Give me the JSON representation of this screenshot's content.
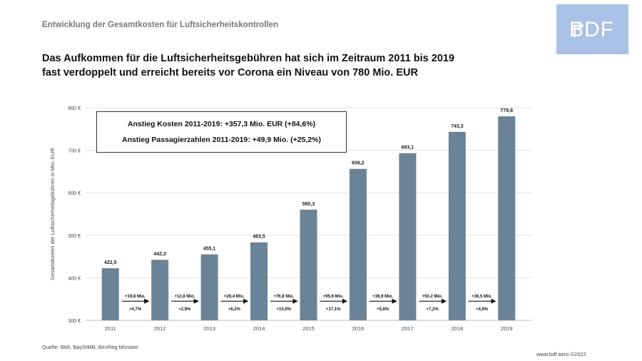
{
  "header": {
    "subtitle": "Entwicklung der Gesamtkosten für Luftsicherheitskontrollen",
    "headline_line1": "Das Aufkommen für die Luftsicherheitsgebühren hat sich im Zeitraum 2011 bis 2019",
    "headline_line2": "fast verdoppelt und erreicht bereits vor Corona ein Niveau von 780 Mio. EUR",
    "logo_text": "BDF",
    "logo_arrow": "↱"
  },
  "infobox": {
    "line1": "Anstieg Kosten 2011-2019: +357,3 Mio. EUR (+84,6%)",
    "line2": "Anstieg Passagierzahlen 2011-2019: +49,9 Mio. (+25,2%)"
  },
  "chart_data": {
    "type": "bar",
    "categories": [
      "2011",
      "2012",
      "2013",
      "2014",
      "2015",
      "2016",
      "2017",
      "2018",
      "2019"
    ],
    "values": [
      422.5,
      442.3,
      455.1,
      483.5,
      560.3,
      656.2,
      693.1,
      743.3,
      779.8
    ],
    "value_labels": [
      "422,5",
      "442,3",
      "455,1",
      "483,5",
      "560,3",
      "656,2",
      "693,1",
      "743,3",
      "779,8"
    ],
    "ylim": [
      300,
      800
    ],
    "yticks": [
      300,
      400,
      500,
      600,
      700,
      800
    ],
    "ytick_labels": [
      "300 €",
      "400 €",
      "500 €",
      "600 €",
      "700 €",
      "800 €"
    ],
    "ylabel": "Gesamtkosten der Luftsicherheitsgebühren in Mio. EUR",
    "xlabel": "",
    "bar_color": "#6b8396",
    "changes": [
      {
        "abs": "+19,8 Mio.",
        "pct": "+4,7%"
      },
      {
        "abs": "+12,8 Mio.",
        "pct": "+2,9%"
      },
      {
        "abs": "+28,4 Mio.",
        "pct": "+6,2%"
      },
      {
        "abs": "+76,8 Mio.",
        "pct": "+15,9%"
      },
      {
        "abs": "+95,9 Mio.",
        "pct": "+17,1%"
      },
      {
        "abs": "+36,9 Mio.",
        "pct": "+5,6%"
      },
      {
        "abs": "+50,2 Mio.",
        "pct": "+7,2%"
      },
      {
        "abs": "+36,5 Mio.",
        "pct": "+4,9%"
      }
    ]
  },
  "footer": {
    "source": "Quelle: BMI, BayStMB, BezReg Münster",
    "copyright": "www.bdf.aero ©2022"
  }
}
